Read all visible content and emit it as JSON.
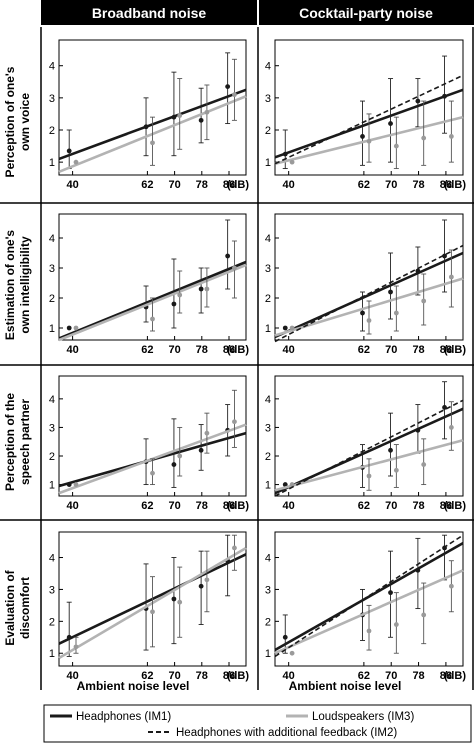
{
  "figure": {
    "column_headers": [
      "Broadband noise",
      "Cocktail-party noise"
    ],
    "row_titles": [
      [
        "Perception of one's",
        "own voice"
      ],
      [
        "Estimation of one's",
        "own intelligibility"
      ],
      [
        "Perception of the",
        "speech partner"
      ],
      [
        "Evaluation of",
        "discomfort"
      ]
    ],
    "x_axis_label": "Ambient noise level",
    "x_unit": "(dB)",
    "legend": {
      "im1": "Headphones (IM1)",
      "im3": "Loudspeakers (IM3)",
      "im2": "Headphones with additional feedback (IM2)"
    },
    "colors": {
      "im1": "#1a1a1a",
      "im3": "#b3b3b3",
      "im2": "#1a1a1a",
      "frame": "#000000",
      "header_bg": "#000000",
      "header_text": "#ffffff"
    }
  },
  "chart_data": [
    {
      "type": "line",
      "row": "Perception of one's own voice",
      "column": "Broadband noise",
      "x": [
        40,
        62,
        70,
        78,
        86
      ],
      "xticks": [
        40,
        62,
        70,
        78,
        86
      ],
      "xlim": [
        36,
        91
      ],
      "ylim": [
        0.6,
        4.8
      ],
      "yticks": [
        1,
        2,
        3,
        4
      ],
      "series": [
        {
          "name": "Headphones (IM1)",
          "points": [
            [
              39,
              1.35,
              0.8,
              2.0
            ],
            [
              61.6,
              2.1,
              1.2,
              3.0
            ],
            [
              69.8,
              2.4,
              1.2,
              3.8
            ],
            [
              77.8,
              2.3,
              1.6,
              3.3
            ],
            [
              85.6,
              3.35,
              2.2,
              4.4
            ]
          ],
          "fit": [
            [
              36,
              1.1
            ],
            [
              91,
              3.25
            ]
          ]
        },
        {
          "name": "Loudspeakers (IM3)",
          "points": [
            [
              41,
              1.0,
              1.0,
              1.0
            ],
            [
              63.5,
              1.6,
              0.9,
              2.4
            ],
            [
              71.5,
              2.45,
              1.4,
              3.6
            ],
            [
              79.5,
              2.55,
              1.7,
              3.4
            ],
            [
              87.6,
              3.1,
              2.3,
              4.2
            ]
          ],
          "fit": [
            [
              36,
              0.7
            ],
            [
              91,
              3.05
            ]
          ]
        }
      ]
    },
    {
      "type": "line",
      "row": "Perception of one's own voice",
      "column": "Cocktail-party noise",
      "x": [
        40,
        62,
        70,
        78,
        86
      ],
      "xticks": [
        40,
        62,
        70,
        78,
        86
      ],
      "xlim": [
        36,
        91
      ],
      "ylim": [
        0.6,
        4.8
      ],
      "yticks": [
        1,
        2,
        3,
        4
      ],
      "series": [
        {
          "name": "Headphones (IM1)",
          "points": [
            [
              39,
              1.25,
              0.8,
              2.0
            ],
            [
              61.6,
              1.8,
              0.9,
              2.9
            ],
            [
              69.8,
              2.2,
              1.0,
              3.6
            ],
            [
              77.8,
              2.9,
              2.1,
              3.6
            ],
            [
              85.6,
              3.05,
              1.9,
              4.3
            ]
          ],
          "fit": [
            [
              36,
              1.15
            ],
            [
              91,
              3.25
            ]
          ]
        },
        {
          "name": "Loudspeakers (IM3)",
          "points": [
            [
              41,
              1.0,
              1.0,
              1.0
            ],
            [
              63.5,
              1.65,
              1.0,
              2.5
            ],
            [
              71.5,
              1.5,
              0.8,
              2.4
            ],
            [
              79.5,
              1.75,
              0.9,
              2.9
            ],
            [
              87.6,
              1.8,
              1.0,
              2.9
            ]
          ],
          "fit": [
            [
              36,
              0.95
            ],
            [
              91,
              2.4
            ]
          ]
        },
        {
          "name": "Headphones with additional feedback (IM2)",
          "points": [],
          "fit": [
            [
              36,
              0.95
            ],
            [
              91,
              3.7
            ]
          ]
        }
      ]
    },
    {
      "type": "line",
      "row": "Estimation of one's own intelligibility",
      "column": "Broadband noise",
      "x": [
        40,
        62,
        70,
        78,
        86
      ],
      "xticks": [
        40,
        62,
        70,
        78,
        86
      ],
      "xlim": [
        36,
        91
      ],
      "ylim": [
        0.6,
        4.8
      ],
      "yticks": [
        1,
        2,
        3,
        4
      ],
      "series": [
        {
          "name": "Headphones (IM1)",
          "points": [
            [
              39,
              1.0,
              1.0,
              1.0
            ],
            [
              61.6,
              1.7,
              1.2,
              2.4
            ],
            [
              69.8,
              1.8,
              1.0,
              3.3
            ],
            [
              77.8,
              2.3,
              1.5,
              3.0
            ],
            [
              85.6,
              3.4,
              2.3,
              4.6
            ]
          ],
          "fit": [
            [
              36,
              0.65
            ],
            [
              91,
              3.2
            ]
          ]
        },
        {
          "name": "Loudspeakers (IM3)",
          "points": [
            [
              41,
              1.0,
              1.0,
              1.0
            ],
            [
              63.5,
              1.3,
              0.9,
              2.0
            ],
            [
              71.5,
              2.1,
              1.5,
              2.9
            ],
            [
              79.5,
              2.3,
              1.7,
              3.0
            ],
            [
              87.6,
              3.0,
              2.0,
              3.9
            ]
          ],
          "fit": [
            [
              36,
              0.6
            ],
            [
              91,
              3.1
            ]
          ]
        }
      ]
    },
    {
      "type": "line",
      "row": "Estimation of one's own intelligibility",
      "column": "Cocktail-party noise",
      "x": [
        40,
        62,
        70,
        78,
        86
      ],
      "xticks": [
        40,
        62,
        70,
        78,
        86
      ],
      "xlim": [
        36,
        91
      ],
      "ylim": [
        0.6,
        4.8
      ],
      "yticks": [
        1,
        2,
        3,
        4
      ],
      "series": [
        {
          "name": "Headphones (IM1)",
          "points": [
            [
              39,
              1.0,
              1.0,
              1.0
            ],
            [
              61.6,
              1.5,
              0.9,
              2.2
            ],
            [
              69.8,
              2.2,
              1.3,
              3.5
            ],
            [
              77.8,
              2.9,
              2.1,
              3.7
            ],
            [
              85.6,
              3.4,
              2.2,
              4.6
            ]
          ],
          "fit": [
            [
              36,
              0.7
            ],
            [
              91,
              3.5
            ]
          ]
        },
        {
          "name": "Loudspeakers (IM3)",
          "points": [
            [
              41,
              1.0,
              1.0,
              1.0
            ],
            [
              63.5,
              1.25,
              0.8,
              1.9
            ],
            [
              71.5,
              1.5,
              0.9,
              2.4
            ],
            [
              79.5,
              1.9,
              1.1,
              2.8
            ],
            [
              87.6,
              2.7,
              1.7,
              3.6
            ]
          ],
          "fit": [
            [
              36,
              0.75
            ],
            [
              91,
              2.65
            ]
          ]
        },
        {
          "name": "Headphones with additional feedback (IM2)",
          "points": [],
          "fit": [
            [
              36,
              0.55
            ],
            [
              91,
              3.75
            ]
          ]
        }
      ]
    },
    {
      "type": "line",
      "row": "Perception of the speech partner",
      "column": "Broadband noise",
      "x": [
        40,
        62,
        70,
        78,
        86
      ],
      "xticks": [
        40,
        62,
        70,
        78,
        86
      ],
      "xlim": [
        36,
        91
      ],
      "ylim": [
        0.6,
        4.8
      ],
      "yticks": [
        1,
        2,
        3,
        4
      ],
      "series": [
        {
          "name": "Headphones (IM1)",
          "points": [
            [
              39,
              1.0,
              1.0,
              1.0
            ],
            [
              61.6,
              1.8,
              1.0,
              2.6
            ],
            [
              69.8,
              1.7,
              0.9,
              3.3
            ],
            [
              77.8,
              2.2,
              1.5,
              3.1
            ],
            [
              85.6,
              2.9,
              2.0,
              3.8
            ]
          ],
          "fit": [
            [
              36,
              0.95
            ],
            [
              91,
              2.8
            ]
          ]
        },
        {
          "name": "Loudspeakers (IM3)",
          "points": [
            [
              41,
              1.0,
              1.0,
              1.0
            ],
            [
              63.5,
              1.4,
              1.0,
              1.9
            ],
            [
              71.5,
              2.0,
              1.3,
              3.0
            ],
            [
              79.5,
              2.8,
              2.1,
              3.5
            ],
            [
              87.6,
              3.2,
              2.3,
              4.3
            ]
          ],
          "fit": [
            [
              36,
              0.7
            ],
            [
              91,
              3.1
            ]
          ]
        }
      ]
    },
    {
      "type": "line",
      "row": "Perception of the speech partner",
      "column": "Cocktail-party noise",
      "x": [
        40,
        62,
        70,
        78,
        86
      ],
      "xticks": [
        40,
        62,
        70,
        78,
        86
      ],
      "xlim": [
        36,
        91
      ],
      "ylim": [
        0.6,
        4.8
      ],
      "yticks": [
        1,
        2,
        3,
        4
      ],
      "series": [
        {
          "name": "Headphones (IM1)",
          "points": [
            [
              39,
              1.0,
              1.0,
              1.0
            ],
            [
              61.6,
              1.6,
              0.9,
              2.4
            ],
            [
              69.8,
              2.2,
              1.3,
              3.5
            ],
            [
              77.8,
              2.9,
              2.1,
              3.8
            ],
            [
              85.6,
              3.7,
              2.6,
              4.6
            ]
          ],
          "fit": [
            [
              36,
              0.7
            ],
            [
              91,
              3.65
            ]
          ]
        },
        {
          "name": "Loudspeakers (IM3)",
          "points": [
            [
              41,
              1.0,
              1.0,
              1.0
            ],
            [
              63.5,
              1.3,
              0.8,
              1.9
            ],
            [
              71.5,
              1.5,
              0.9,
              2.4
            ],
            [
              79.5,
              1.7,
              1.0,
              2.6
            ],
            [
              87.6,
              3.0,
              2.2,
              3.9
            ]
          ],
          "fit": [
            [
              36,
              0.8
            ],
            [
              91,
              2.55
            ]
          ]
        },
        {
          "name": "Headphones with additional feedback (IM2)",
          "points": [],
          "fit": [
            [
              36,
              0.6
            ],
            [
              91,
              3.95
            ]
          ]
        }
      ]
    },
    {
      "type": "line",
      "row": "Evaluation of discomfort",
      "column": "Broadband noise",
      "x": [
        40,
        62,
        70,
        78,
        86
      ],
      "xticks": [
        40,
        62,
        70,
        78,
        86
      ],
      "xlim": [
        36,
        91
      ],
      "ylim": [
        0.6,
        4.8
      ],
      "yticks": [
        1,
        2,
        3,
        4
      ],
      "series": [
        {
          "name": "Headphones (IM1)",
          "points": [
            [
              39,
              1.5,
              0.9,
              2.6
            ],
            [
              61.6,
              2.4,
              1.1,
              3.8
            ],
            [
              69.8,
              2.7,
              1.3,
              4.0
            ],
            [
              77.8,
              3.1,
              1.9,
              4.2
            ],
            [
              85.6,
              3.9,
              2.8,
              4.7
            ]
          ],
          "fit": [
            [
              36,
              1.3
            ],
            [
              91,
              4.1
            ]
          ]
        },
        {
          "name": "Loudspeakers (IM3)",
          "points": [
            [
              41,
              1.2,
              1.0,
              1.5
            ],
            [
              63.5,
              2.3,
              1.2,
              3.4
            ],
            [
              71.5,
              2.6,
              1.5,
              3.7
            ],
            [
              79.5,
              3.3,
              2.3,
              4.2
            ],
            [
              87.6,
              4.3,
              3.6,
              4.7
            ]
          ],
          "fit": [
            [
              36,
              0.85
            ],
            [
              91,
              4.3
            ]
          ]
        }
      ]
    },
    {
      "type": "line",
      "row": "Evaluation of discomfort",
      "column": "Cocktail-party noise",
      "x": [
        40,
        62,
        70,
        78,
        86
      ],
      "xticks": [
        40,
        62,
        70,
        78,
        86
      ],
      "xlim": [
        36,
        91
      ],
      "ylim": [
        0.6,
        4.8
      ],
      "yticks": [
        1,
        2,
        3,
        4
      ],
      "series": [
        {
          "name": "Headphones (IM1)",
          "points": [
            [
              39,
              1.5,
              1.0,
              2.2
            ],
            [
              61.6,
              2.2,
              1.4,
              3.0
            ],
            [
              69.8,
              2.9,
              1.5,
              4.2
            ],
            [
              77.8,
              3.6,
              2.4,
              4.6
            ],
            [
              85.6,
              4.3,
              3.3,
              4.7
            ]
          ],
          "fit": [
            [
              36,
              1.1
            ],
            [
              91,
              4.45
            ]
          ]
        },
        {
          "name": "Loudspeakers (IM3)",
          "points": [
            [
              41,
              1.0,
              1.0,
              1.0
            ],
            [
              63.5,
              1.7,
              1.1,
              2.5
            ],
            [
              71.5,
              1.9,
              1.0,
              2.9
            ],
            [
              79.5,
              2.2,
              1.3,
              3.2
            ],
            [
              87.6,
              3.1,
              2.3,
              3.9
            ]
          ],
          "fit": [
            [
              36,
              1.0
            ],
            [
              91,
              3.6
            ]
          ]
        },
        {
          "name": "Headphones with additional feedback (IM2)",
          "points": [],
          "fit": [
            [
              36,
              0.9
            ],
            [
              91,
              4.7
            ]
          ]
        }
      ]
    }
  ]
}
